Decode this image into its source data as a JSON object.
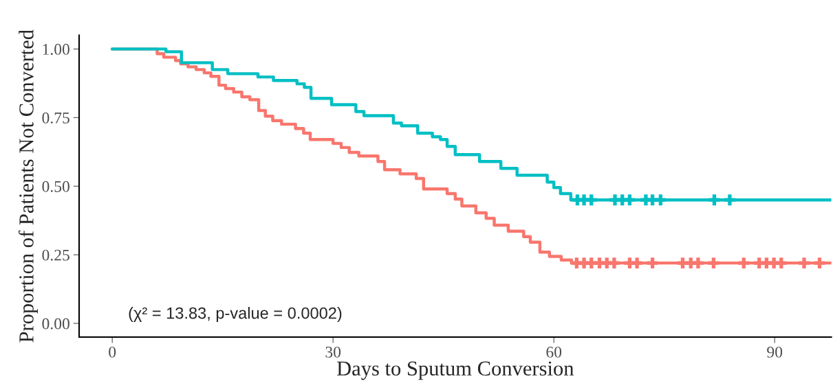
{
  "chart_data": {
    "type": "step",
    "xlabel": "Days to Sputum Conversion",
    "ylabel": "Proportion of Patients Not Converted",
    "annotations": [
      "(χ² = 13.83, p-value = 0.0002)"
    ],
    "xlim": [
      -4.5,
      97.7
    ],
    "ylim": [
      -0.05,
      1.05
    ],
    "xticks": [
      0,
      30,
      60,
      90
    ],
    "yticks": [
      {
        "value": 0,
        "label": "0.00"
      },
      {
        "value": 0.25,
        "label": "0.25"
      },
      {
        "value": 0.5,
        "label": "0.50"
      },
      {
        "value": 0.75,
        "label": "0.75"
      },
      {
        "value": 1,
        "label": "1.00"
      }
    ],
    "grid": false,
    "legend": false,
    "series": [
      {
        "color": "#f8766d",
        "x": [
          0,
          6.1,
          7.0,
          8.6,
          9.3,
          10.3,
          11.4,
          12.5,
          13.4,
          14.5,
          15.4,
          16.5,
          17.6,
          18.7,
          19.9,
          20.8,
          21.8,
          23,
          24.9,
          26,
          26.9,
          30,
          31.1,
          32.2,
          33.5,
          36.1,
          37,
          39.1,
          41.3,
          42.3,
          45.5,
          46.6,
          47.5,
          49.4,
          50.8,
          51.9,
          53.8,
          55.9,
          56.8,
          58.1,
          59.4,
          61,
          62.4,
          97.7
        ],
        "values": [
          1,
          0.983,
          0.97,
          0.958,
          0.946,
          0.935,
          0.925,
          0.913,
          0.9,
          0.868,
          0.856,
          0.843,
          0.826,
          0.815,
          0.776,
          0.755,
          0.739,
          0.726,
          0.71,
          0.693,
          0.67,
          0.656,
          0.641,
          0.623,
          0.61,
          0.59,
          0.56,
          0.545,
          0.528,
          0.49,
          0.473,
          0.453,
          0.428,
          0.403,
          0.383,
          0.358,
          0.336,
          0.316,
          0.296,
          0.26,
          0.244,
          0.231,
          0.22,
          0.22
        ]
      },
      {
        "color": "#00bfc4",
        "x": [
          0,
          7.3,
          9.4,
          13.6,
          15.7,
          19.8,
          21.9,
          25.1,
          26.1,
          27,
          29.8,
          33.1,
          34.2,
          38.2,
          39.3,
          41.5,
          43.5,
          44.6,
          45.5,
          46.6,
          49.9,
          52.8,
          55,
          59.1,
          60,
          60.9,
          62.3,
          97.7
        ],
        "values": [
          1,
          0.99,
          0.95,
          0.925,
          0.91,
          0.898,
          0.885,
          0.873,
          0.86,
          0.82,
          0.797,
          0.772,
          0.757,
          0.73,
          0.72,
          0.693,
          0.68,
          0.67,
          0.645,
          0.615,
          0.59,
          0.565,
          0.54,
          0.515,
          0.495,
          0.473,
          0.45,
          0.45
        ]
      },
      {
        "type": "scatter",
        "marker": "cross",
        "color": "#f8766d",
        "x": [
          63.1,
          64.1,
          65.1,
          66.2,
          67.2,
          68.2,
          70.3,
          71.3,
          73.4,
          77.5,
          78.6,
          79.6,
          81.7,
          85.8,
          87.9,
          88.9,
          89.9,
          90.9,
          94.0,
          96.1
        ],
        "values": [
          0.22,
          0.22,
          0.22,
          0.22,
          0.22,
          0.22,
          0.22,
          0.22,
          0.22,
          0.22,
          0.22,
          0.22,
          0.22,
          0.22,
          0.22,
          0.22,
          0.22,
          0.22,
          0.22,
          0.22
        ]
      },
      {
        "type": "scatter",
        "marker": "cross",
        "color": "#00bfc4",
        "x": [
          63.2,
          64.1,
          65.1,
          68.3,
          69.3,
          70.3,
          72.5,
          73.4,
          74.5,
          81.8,
          83.9
        ],
        "values": [
          0.45,
          0.45,
          0.45,
          0.45,
          0.45,
          0.45,
          0.45,
          0.45,
          0.45,
          0.45,
          0.45
        ]
      }
    ]
  }
}
